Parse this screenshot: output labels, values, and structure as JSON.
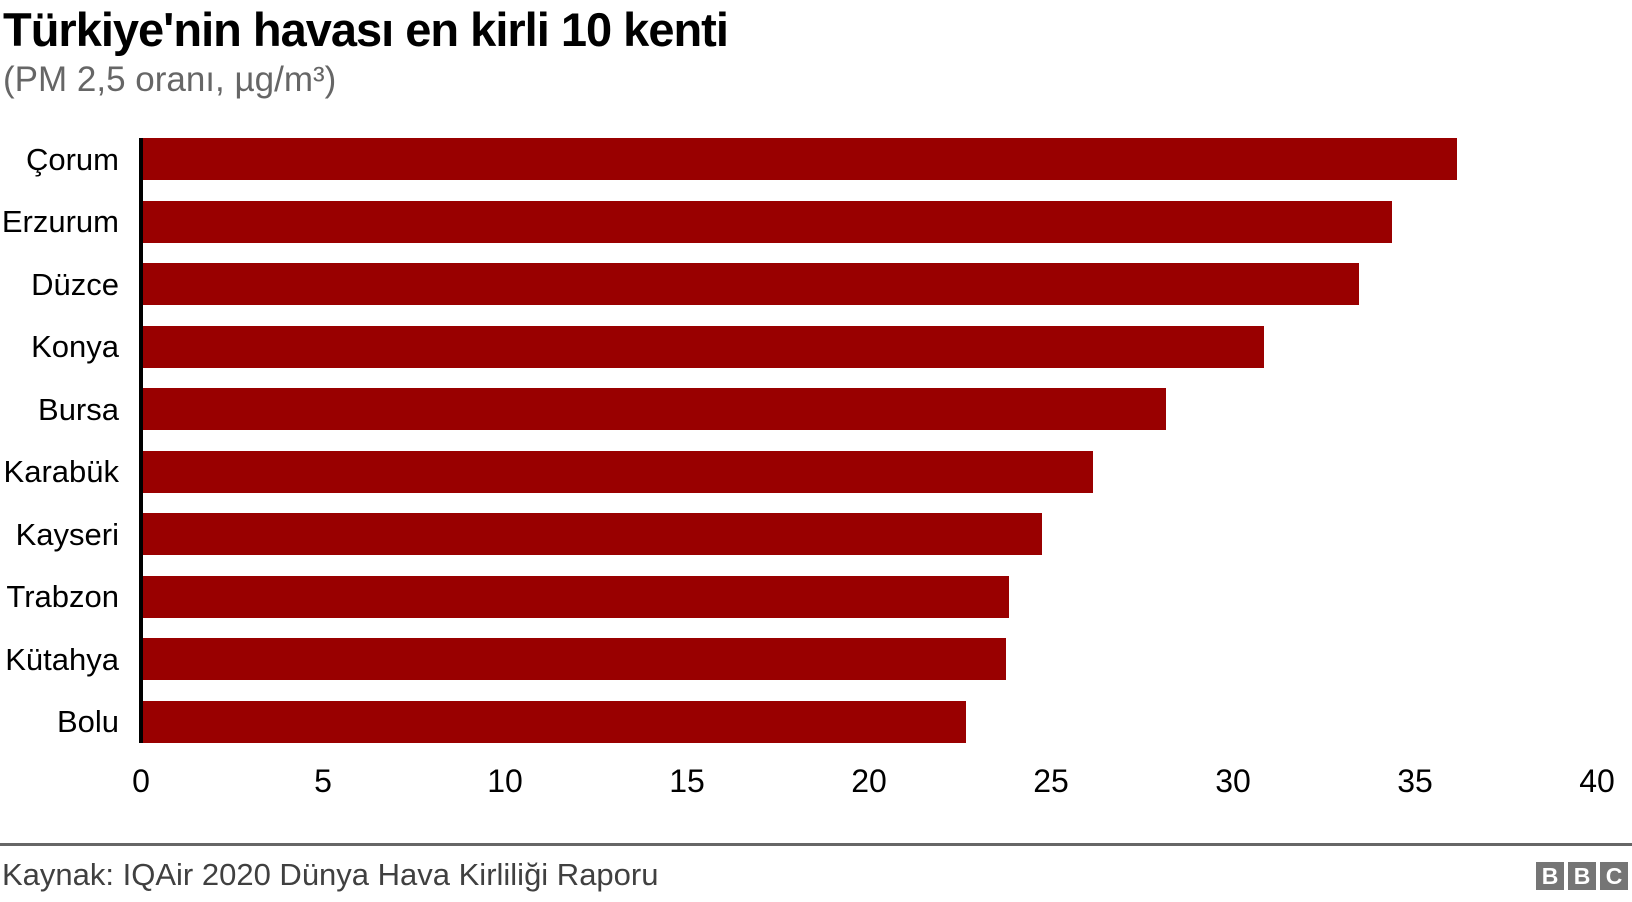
{
  "header": {
    "title": "Türkiye'nin havası en kirli 10 kenti",
    "subtitle": "(PM 2,5 oranı, µg/m³)"
  },
  "chart_data": {
    "type": "bar",
    "orientation": "horizontal",
    "title": "Türkiye'nin havası en kirli 10 kenti",
    "subtitle": "(PM 2,5 oranı, µg/m³)",
    "categories": [
      "Çorum",
      "Erzurum",
      "Düzce",
      "Konya",
      "Bursa",
      "Karabük",
      "Kayseri",
      "Trabzon",
      "Kütahya",
      "Bolu"
    ],
    "values": [
      36.1,
      34.3,
      33.4,
      30.8,
      28.1,
      26.1,
      24.7,
      23.8,
      23.7,
      22.6
    ],
    "xlabel": "",
    "ylabel": "",
    "xlim": [
      0,
      40
    ],
    "x_ticks": [
      0,
      5,
      10,
      15,
      20,
      25,
      30,
      35,
      40
    ],
    "grid": false,
    "legend": "none",
    "bar_color": "#990000",
    "axis_line_color": "#000000"
  },
  "footer": {
    "source": "Kaynak: IQAir 2020 Dünya Hava Kirliliği Raporu",
    "logo": {
      "name": "BBC",
      "letters": [
        "B",
        "B",
        "C"
      ],
      "color": "#757575"
    }
  }
}
